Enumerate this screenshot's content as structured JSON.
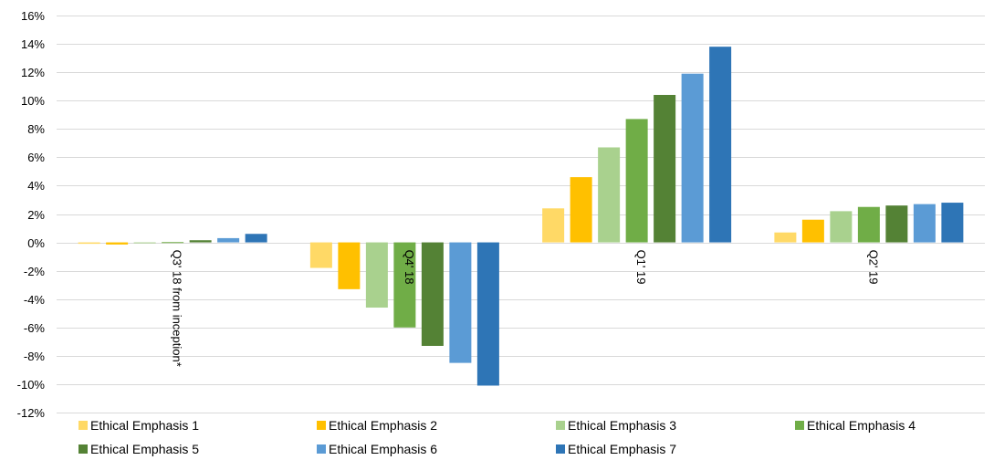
{
  "chart_data": {
    "type": "bar",
    "categories": [
      "Q3' 18 from inception*",
      "Q4' 18",
      "Q1' 19",
      "Q2' 19"
    ],
    "y_ticks": [
      16,
      14,
      12,
      10,
      8,
      6,
      4,
      2,
      0,
      -2,
      -4,
      -6,
      -8,
      -10,
      -12
    ],
    "y_tick_labels": [
      "16%",
      "14%",
      "12%",
      "10%",
      "8%",
      "6%",
      "4%",
      "2%",
      "0%",
      "-2%",
      "-4%",
      "-6%",
      "-8%",
      "-10%",
      "-12%"
    ],
    "ylim": [
      -12,
      16
    ],
    "grid": true,
    "legend_position": "bottom",
    "series": [
      {
        "name": "Ethical Emphasis 1",
        "color": "#FFD966",
        "values": [
          -0.1,
          -1.8,
          2.4,
          0.7
        ]
      },
      {
        "name": "Ethical Emphasis 2",
        "color": "#FFC000",
        "values": [
          -0.15,
          -3.3,
          4.6,
          1.6
        ]
      },
      {
        "name": "Ethical Emphasis 3",
        "color": "#A9D18E",
        "values": [
          -0.05,
          -4.6,
          6.7,
          2.2
        ]
      },
      {
        "name": "Ethical Emphasis 4",
        "color": "#70AD47",
        "values": [
          0.02,
          -6.0,
          8.7,
          2.5
        ]
      },
      {
        "name": "Ethical Emphasis 5",
        "color": "#548235",
        "values": [
          0.15,
          -7.3,
          10.4,
          2.6
        ]
      },
      {
        "name": "Ethical Emphasis 6",
        "color": "#5B9BD5",
        "values": [
          0.3,
          -8.5,
          11.9,
          2.7
        ]
      },
      {
        "name": "Ethical Emphasis 7",
        "color": "#2E75B6",
        "values": [
          0.6,
          -10.1,
          13.8,
          2.8
        ]
      }
    ],
    "colors": {
      "gridline": "#D9D9D9",
      "axis_text": "#000000"
    }
  }
}
